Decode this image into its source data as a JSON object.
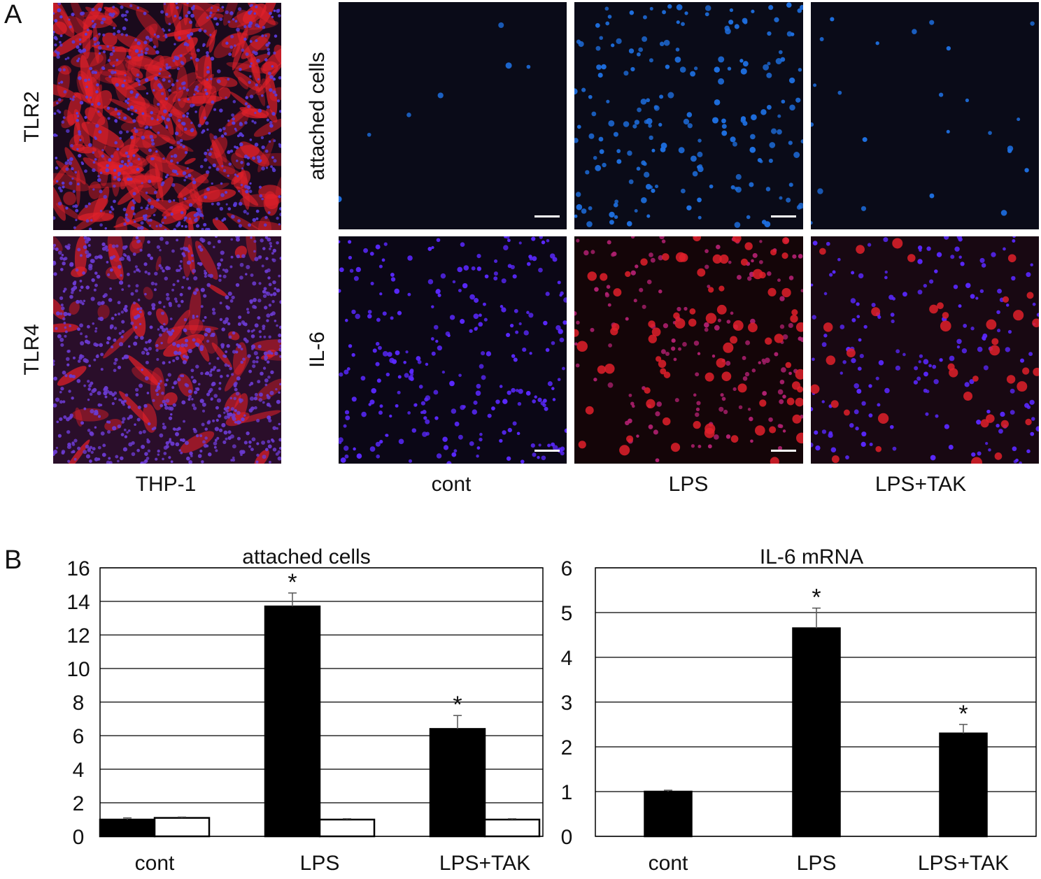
{
  "panels": {
    "a_letter": "A",
    "b_letter": "B"
  },
  "panel_a": {
    "row_labels_left": [
      "TLR2",
      "TLR4"
    ],
    "row_labels_right": [
      "attached cells",
      "IL-6"
    ],
    "col_labels": [
      "THP-1",
      "cont",
      "LPS",
      "LPS+TAK"
    ],
    "colors": {
      "background": "#0a0b18",
      "nuclei_blue": "#1e6fe0",
      "stain_red": "#e0202a",
      "nuclei_violet": "#5a28ff"
    }
  },
  "chart_data": [
    {
      "type": "bar",
      "title": "attached cells",
      "categories": [
        "cont",
        "LPS",
        "LPS+TAK"
      ],
      "series": [
        {
          "values": [
            1.0,
            13.7,
            6.4
          ],
          "errors": [
            0.1,
            0.8,
            0.8
          ],
          "color": "#000000"
        },
        {
          "values": [
            1.1,
            1.0,
            1.0
          ],
          "errors": [
            0.05,
            0.05,
            0.05
          ],
          "color": "#ffffff"
        }
      ],
      "annotations": [
        {
          "category": "LPS",
          "text": "*"
        },
        {
          "category": "LPS+TAK",
          "text": "*"
        }
      ],
      "yticks": [
        "0",
        "2",
        "4",
        "6",
        "8",
        "10",
        "12",
        "14",
        "16"
      ],
      "ylim": [
        0,
        16
      ],
      "grid": true
    },
    {
      "type": "bar",
      "title": "IL-6 mRNA",
      "categories": [
        "cont",
        "LPS",
        "LPS+TAK"
      ],
      "series": [
        {
          "values": [
            1.0,
            4.65,
            2.3
          ],
          "errors": [
            0.03,
            0.45,
            0.2
          ],
          "color": "#000000"
        }
      ],
      "annotations": [
        {
          "category": "LPS",
          "text": "*"
        },
        {
          "category": "LPS+TAK",
          "text": "*"
        }
      ],
      "yticks": [
        "0",
        "1",
        "2",
        "3",
        "4",
        "5",
        "6"
      ],
      "ylim": [
        0,
        6
      ],
      "grid": true
    }
  ]
}
